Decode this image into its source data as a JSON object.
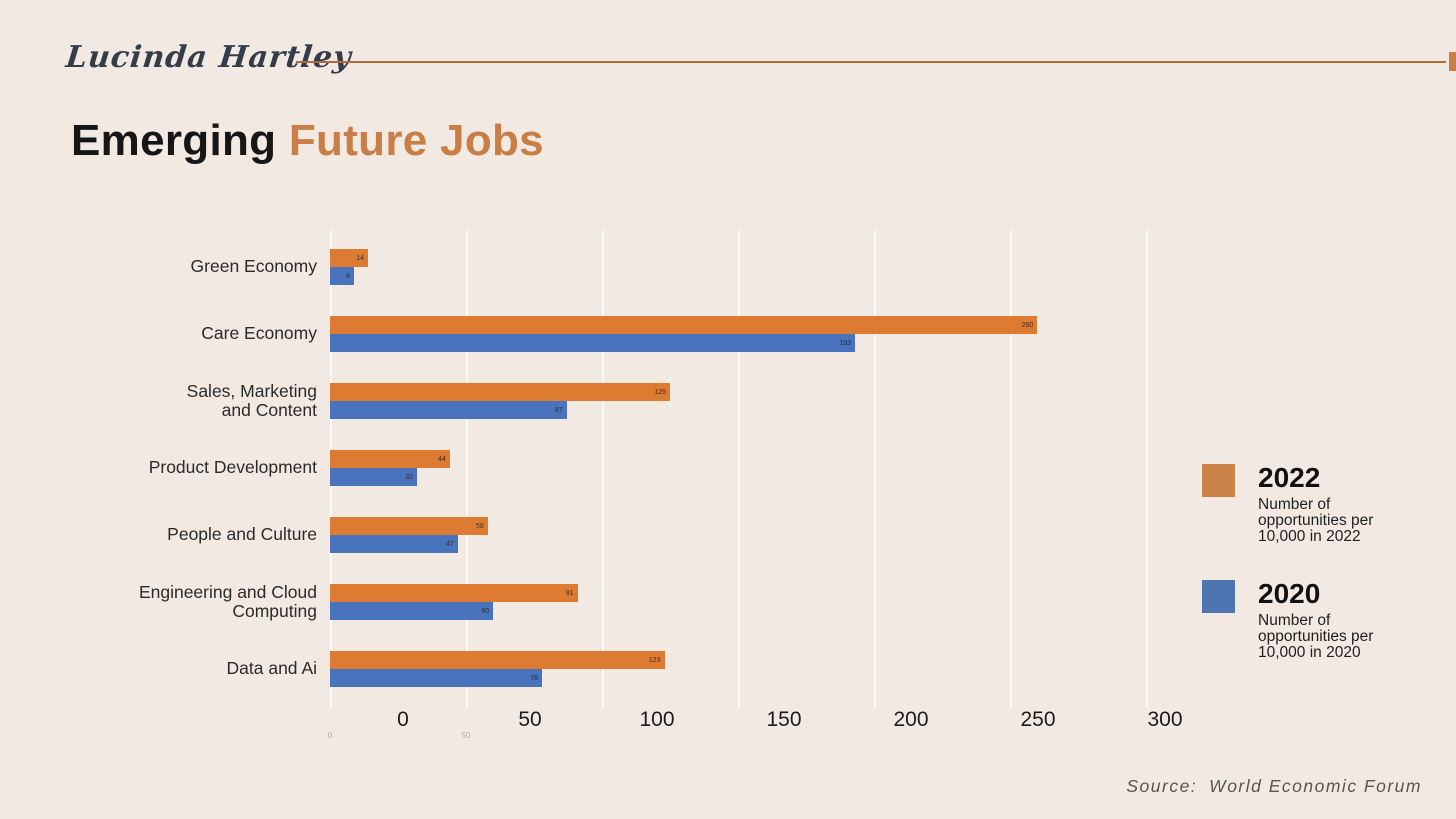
{
  "slide": {
    "background_color": "#F2E9E3"
  },
  "header": {
    "logo_text": "Lucinda Hartley",
    "line_color": "#AF6B3B"
  },
  "title": {
    "part1": "Emerging",
    "part2": "Future Jobs",
    "accent_color": "#C87E45"
  },
  "chart_data": {
    "type": "bar",
    "orientation": "horizontal",
    "categories": [
      "Green Economy",
      "Care Economy",
      "Sales, Marketing and Content",
      "Product Development",
      "People and Culture",
      "Engineering and Cloud Computing",
      "Data and Ai"
    ],
    "display_lines": [
      [
        "Green Economy"
      ],
      [
        "Care Economy"
      ],
      [
        "Sales, Marketing",
        "and Content"
      ],
      [
        "Product Development"
      ],
      [
        "People and Culture"
      ],
      [
        "Engineering and Cloud",
        "Computing"
      ],
      [
        "Data and Ai"
      ]
    ],
    "series": [
      {
        "name": "2022",
        "color": "#DE7B33",
        "values": [
          14,
          260,
          125,
          44,
          58,
          91,
          123
        ]
      },
      {
        "name": "2020",
        "color": "#4A73BE",
        "values": [
          8,
          193,
          87,
          32,
          47,
          60,
          78
        ]
      }
    ],
    "x_ticks": [
      "0",
      "50",
      "100",
      "150",
      "200",
      "250",
      "300"
    ],
    "faint_inner_ticks": [
      "0",
      "50"
    ],
    "xlim": [
      0,
      300
    ],
    "grid": "vertical-faint",
    "legend_position": "right",
    "value_labels": "inside-end"
  },
  "legend": {
    "items": [
      {
        "year": "2022",
        "color": "#C98247",
        "description": "Number of opportunities per 10,000 in 2022"
      },
      {
        "year": "2020",
        "color": "#4F74B2",
        "description": "Number of opportunities per 10,000 in 2020"
      }
    ]
  },
  "source": {
    "label": "Source:",
    "value": "World Economic Forum"
  }
}
